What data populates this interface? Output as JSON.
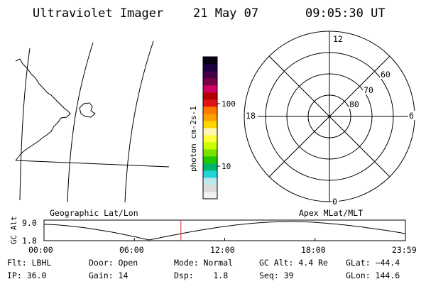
{
  "header": {
    "title": "Ultraviolet Imager",
    "date": "21 May 07",
    "time": "09:05:30 UT"
  },
  "colorbar": {
    "unit_label": "photon cm-2s-1",
    "tick_labels": [
      "100",
      "10"
    ],
    "colors": [
      "#f2f2f2",
      "#dcdcdc",
      "#bde8ee",
      "#22d3d6",
      "#00b46e",
      "#22c800",
      "#7ae100",
      "#c8ff00",
      "#ffff3c",
      "#fff5b4",
      "#ffd700",
      "#ffa000",
      "#ff7800",
      "#e01414",
      "#b40000",
      "#d20064",
      "#7a0044",
      "#46004a",
      "#1a0040",
      "#0a0014"
    ]
  },
  "polar_plot": {
    "mlt_labels": {
      "top": "12",
      "bottom": "0",
      "left": "18",
      "right": "6"
    },
    "lat_labels": [
      "60",
      "70",
      "80"
    ]
  },
  "altitude_plot": {
    "ylabel": "GC Alt",
    "y_ticks": [
      "9.0",
      "1.8"
    ],
    "left_label": "Geographic Lat/Lon",
    "right_label": "Apex MLat/MLT",
    "x_ticks": [
      "00:00",
      "06:00",
      "12:00",
      "18:00",
      "23:59"
    ],
    "current_time_fraction": 0.3788,
    "curve_color": "#000000",
    "marker_color": "#e02020"
  },
  "status": {
    "filter": "Flt: LBHL",
    "door": "Door: Open",
    "mode": "Mode: Normal",
    "gc_alt": "GC Alt: 4.4 Re",
    "glat": "GLat: −44.4",
    "ip": "IP: 36.0",
    "gain": "Gain: 14",
    "dsp": "Dsp:    1.8",
    "seq": "Seq: 39",
    "glon": "GLon: 144.6"
  }
}
